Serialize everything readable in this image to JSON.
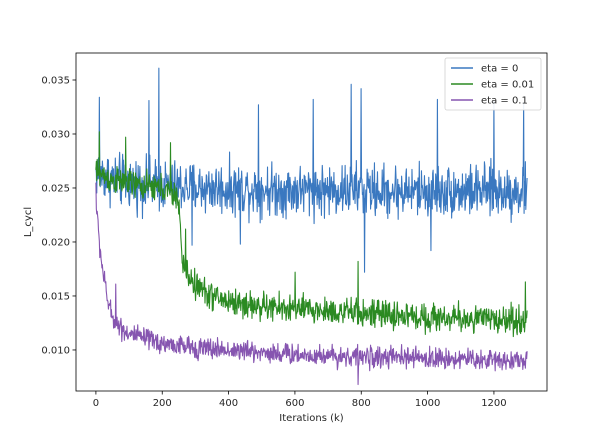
{
  "chart_data": {
    "type": "line",
    "title": "",
    "xlabel": "Iterations (k)",
    "ylabel": "L_cycl",
    "xlim": [
      -60,
      1360
    ],
    "ylim": [
      0.0062,
      0.0375
    ],
    "xticks": [
      0,
      200,
      400,
      600,
      800,
      1000,
      1200
    ],
    "yticks": [
      0.01,
      0.015,
      0.02,
      0.025,
      0.03,
      0.035
    ],
    "xtick_labels": [
      "0",
      "200",
      "400",
      "600",
      "800",
      "1000",
      "1200"
    ],
    "ytick_labels": [
      "0.010",
      "0.015",
      "0.020",
      "0.025",
      "0.030",
      "0.035"
    ],
    "grid": false,
    "legend_position": "top-right",
    "series": [
      {
        "name": "eta = 0",
        "color": "#3a78c0",
        "x": [
          0,
          50,
          100,
          150,
          200,
          250,
          300,
          350,
          400,
          450,
          500,
          550,
          600,
          650,
          700,
          750,
          800,
          850,
          900,
          950,
          1000,
          1050,
          1100,
          1150,
          1200,
          1250,
          1300
        ],
        "y": [
          0.0265,
          0.0258,
          0.0255,
          0.0253,
          0.0252,
          0.0251,
          0.025,
          0.025,
          0.0249,
          0.0249,
          0.0249,
          0.0248,
          0.0248,
          0.0248,
          0.0248,
          0.0248,
          0.0248,
          0.0247,
          0.0247,
          0.0247,
          0.0247,
          0.0247,
          0.0247,
          0.0247,
          0.0247,
          0.0247,
          0.0246
        ],
        "noise_amplitude": 0.0022,
        "spikes": [
          [
            10,
            0.0334
          ],
          [
            190,
            0.0361
          ],
          [
            160,
            0.0331
          ],
          [
            490,
            0.0327
          ],
          [
            655,
            0.0332
          ],
          [
            770,
            0.0346
          ],
          [
            800,
            0.0342
          ],
          [
            1030,
            0.0332
          ],
          [
            1200,
            0.033
          ],
          [
            1290,
            0.0329
          ],
          [
            435,
            0.0198
          ],
          [
            810,
            0.0172
          ],
          [
            1010,
            0.0192
          ],
          [
            290,
            0.0197
          ]
        ]
      },
      {
        "name": "eta = 0.01",
        "color": "#2b8a22",
        "x": [
          0,
          50,
          100,
          150,
          200,
          250,
          260,
          280,
          300,
          350,
          400,
          450,
          500,
          550,
          600,
          650,
          700,
          750,
          800,
          850,
          900,
          950,
          1000,
          1050,
          1100,
          1150,
          1200,
          1250,
          1300
        ],
        "y": [
          0.0265,
          0.0257,
          0.0254,
          0.0251,
          0.025,
          0.024,
          0.018,
          0.0168,
          0.016,
          0.015,
          0.0145,
          0.0142,
          0.014,
          0.0139,
          0.0138,
          0.0137,
          0.0136,
          0.0135,
          0.0134,
          0.0133,
          0.0132,
          0.0131,
          0.013,
          0.013,
          0.0129,
          0.0129,
          0.0128,
          0.0128,
          0.0127
        ],
        "noise_amplitude": 0.0012,
        "spikes": [
          [
            10,
            0.0302
          ],
          [
            90,
            0.0297
          ],
          [
            225,
            0.0292
          ],
          [
            270,
            0.0212
          ],
          [
            600,
            0.0172
          ],
          [
            790,
            0.0182
          ],
          [
            1295,
            0.0163
          ]
        ]
      },
      {
        "name": "eta = 0.1",
        "color": "#8655b0",
        "x": [
          0,
          10,
          20,
          30,
          40,
          50,
          70,
          100,
          150,
          200,
          250,
          300,
          350,
          400,
          450,
          500,
          550,
          600,
          650,
          700,
          750,
          800,
          850,
          900,
          950,
          1000,
          1050,
          1100,
          1150,
          1200,
          1250,
          1300
        ],
        "y": [
          0.024,
          0.02,
          0.0175,
          0.0155,
          0.014,
          0.013,
          0.0122,
          0.0115,
          0.011,
          0.0106,
          0.0104,
          0.0102,
          0.0101,
          0.01,
          0.0099,
          0.0098,
          0.0097,
          0.0096,
          0.0095,
          0.0095,
          0.0094,
          0.0094,
          0.0093,
          0.0093,
          0.0093,
          0.0092,
          0.0092,
          0.0092,
          0.0091,
          0.0091,
          0.0091,
          0.009
        ],
        "noise_amplitude": 0.0009,
        "spikes": [
          [
            0,
            0.0255
          ],
          [
            60,
            0.0161
          ],
          [
            790,
            0.0068
          ]
        ]
      }
    ]
  }
}
